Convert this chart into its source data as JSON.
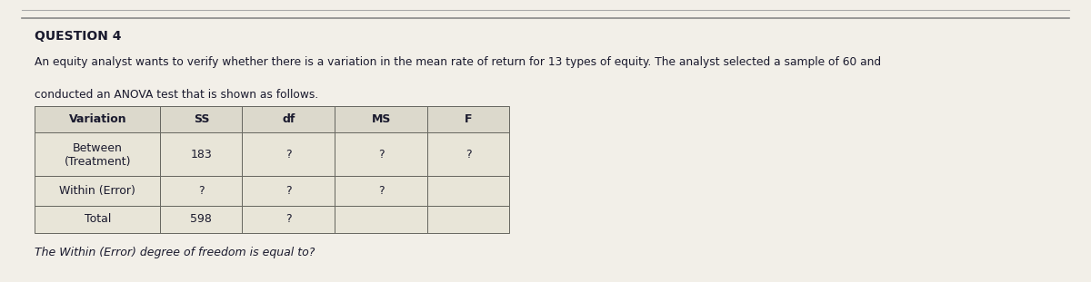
{
  "question_label": "QUESTION 4",
  "description_line1": "An equity analyst wants to verify whether there is a variation in the mean rate of return for 13 types of equity. The analyst selected a sample of 60 and",
  "description_line2": "conducted an ANOVA test that is shown as follows.",
  "table_headers": [
    "Variation",
    "SS",
    "df",
    "MS",
    "F"
  ],
  "row0": [
    "Between",
    "183",
    "?",
    "?",
    "?"
  ],
  "row0b": [
    "(Treatment)",
    "",
    "",
    "",
    ""
  ],
  "row1": [
    "Within (Error)",
    "?",
    "?",
    "?",
    ""
  ],
  "row2": [
    "Total",
    "598",
    "?",
    "",
    ""
  ],
  "footer_text": "The Within (Error) degree of freedom is equal to?",
  "bg_wave_color": "#c8c4b8",
  "panel_color": "#f0eeea",
  "table_cell_color": "#e8e4d8",
  "table_header_color": "#dedad0",
  "text_color": "#1a1a2e",
  "border_color": "#888880",
  "top_line_color": "#999990",
  "title_fontsize": 10,
  "body_fontsize": 9,
  "table_cell_fontsize": 9,
  "footer_fontsize": 9
}
